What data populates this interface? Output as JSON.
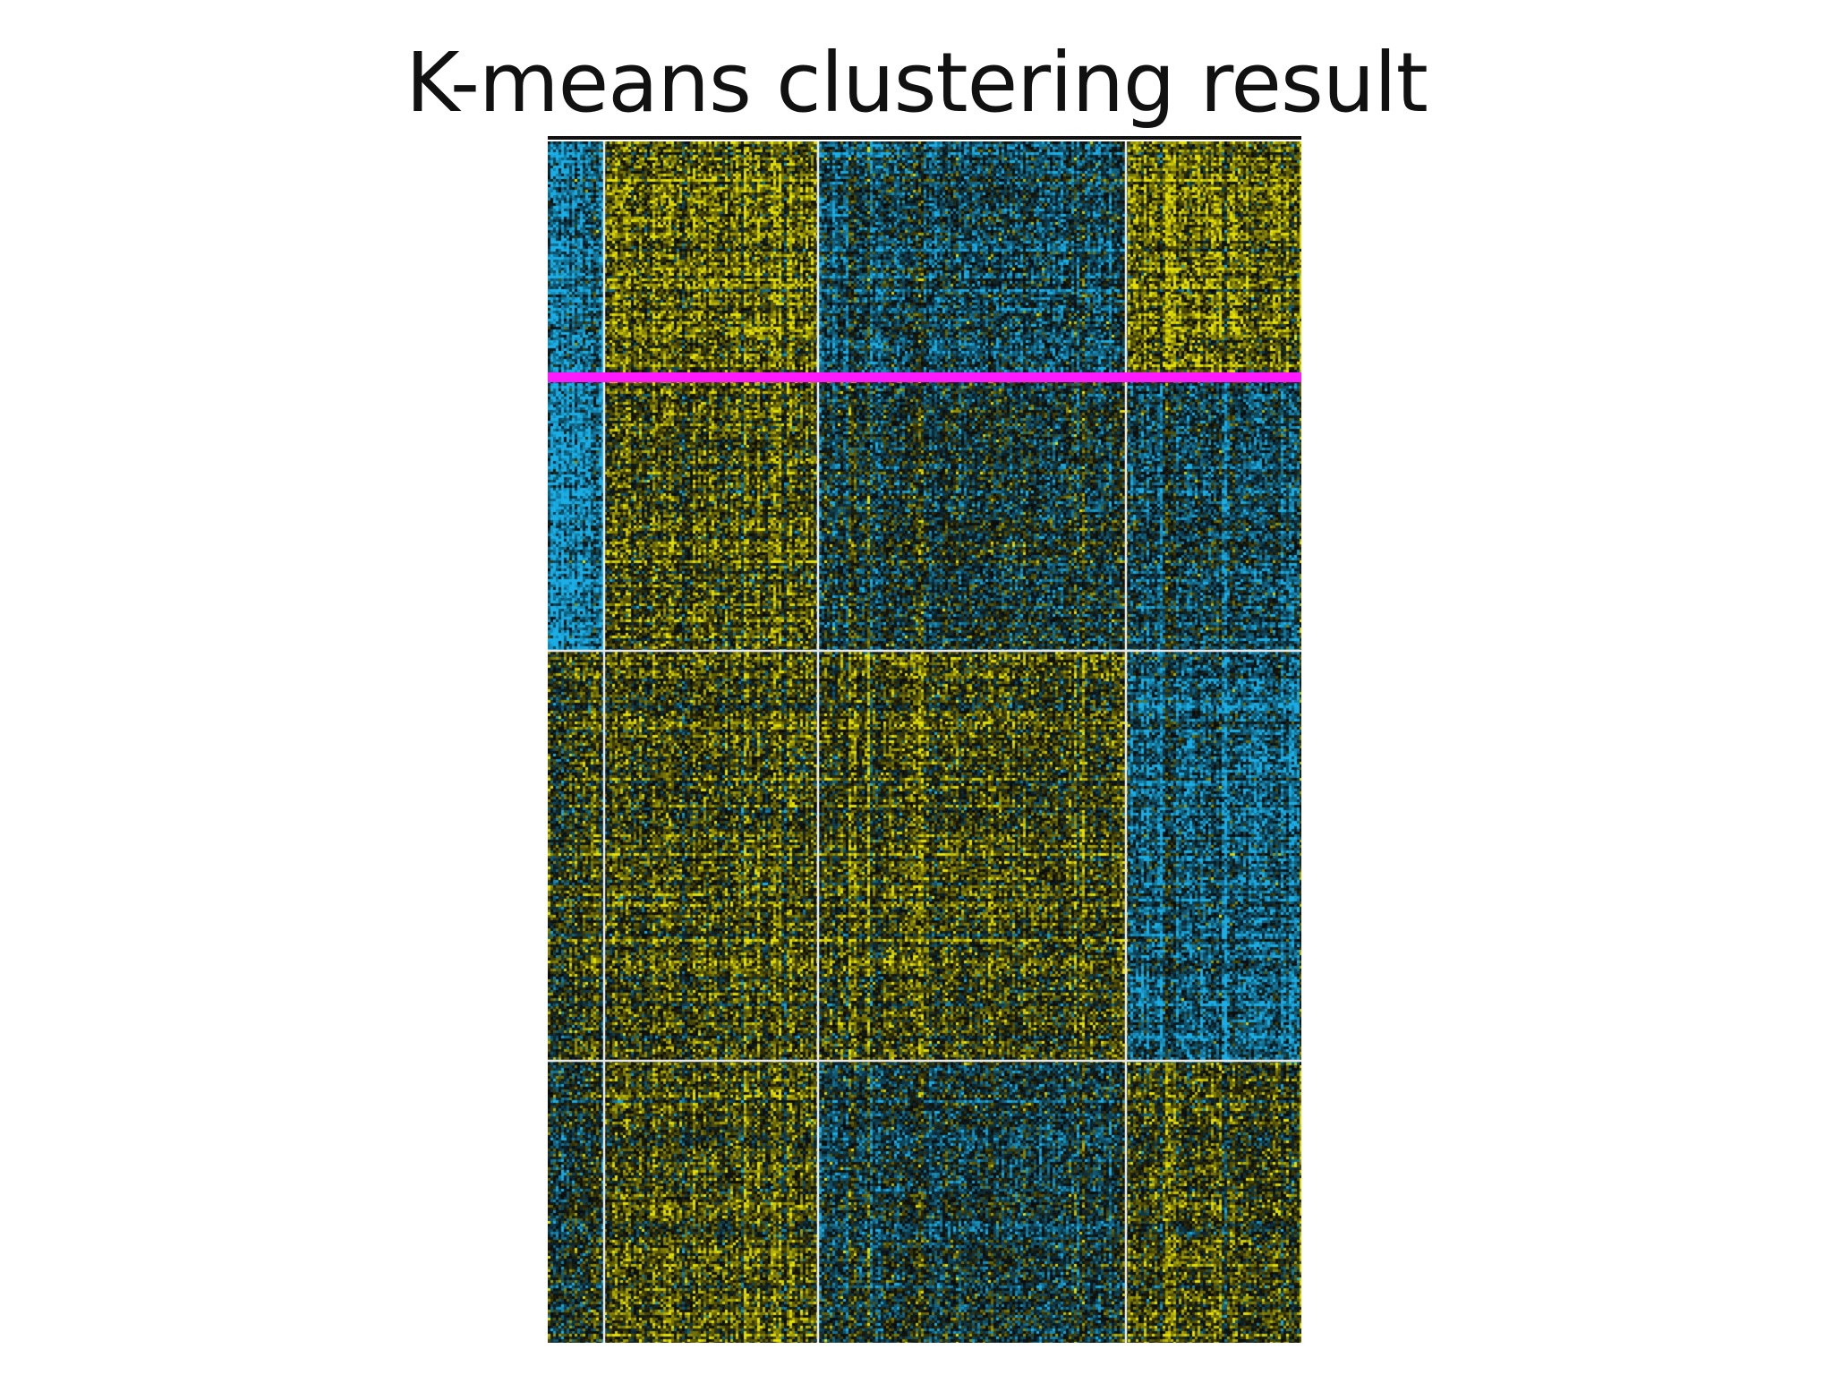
{
  "slide": {
    "title": "K-means clustering result"
  },
  "chart_data": {
    "type": "heatmap",
    "title": "K-means clustering result",
    "xlabel": "",
    "ylabel": "",
    "row_clusters": 4,
    "column_clusters": 4,
    "row_cluster_fractions": [
      0.196,
      0.228,
      0.341,
      0.235
    ],
    "column_cluster_fractions": [
      0.075,
      0.284,
      0.408,
      0.233
    ],
    "block_mean_expression": [
      [
        -0.75,
        0.55,
        -0.4,
        0.6
      ],
      [
        -0.95,
        0.35,
        -0.15,
        -0.4
      ],
      [
        0.2,
        0.3,
        0.3,
        -0.6
      ],
      [
        -0.1,
        0.3,
        -0.25,
        0.25
      ]
    ],
    "highlighted_row_boundary": 1,
    "colors": {
      "high": "#e5e000",
      "low": "#1aaee6",
      "neutral": "#0a0a0a",
      "separator": "#e6e6e6",
      "highlight_band": "#ff19ff",
      "top_border": "#111111"
    },
    "grid": false,
    "legend": "none"
  }
}
